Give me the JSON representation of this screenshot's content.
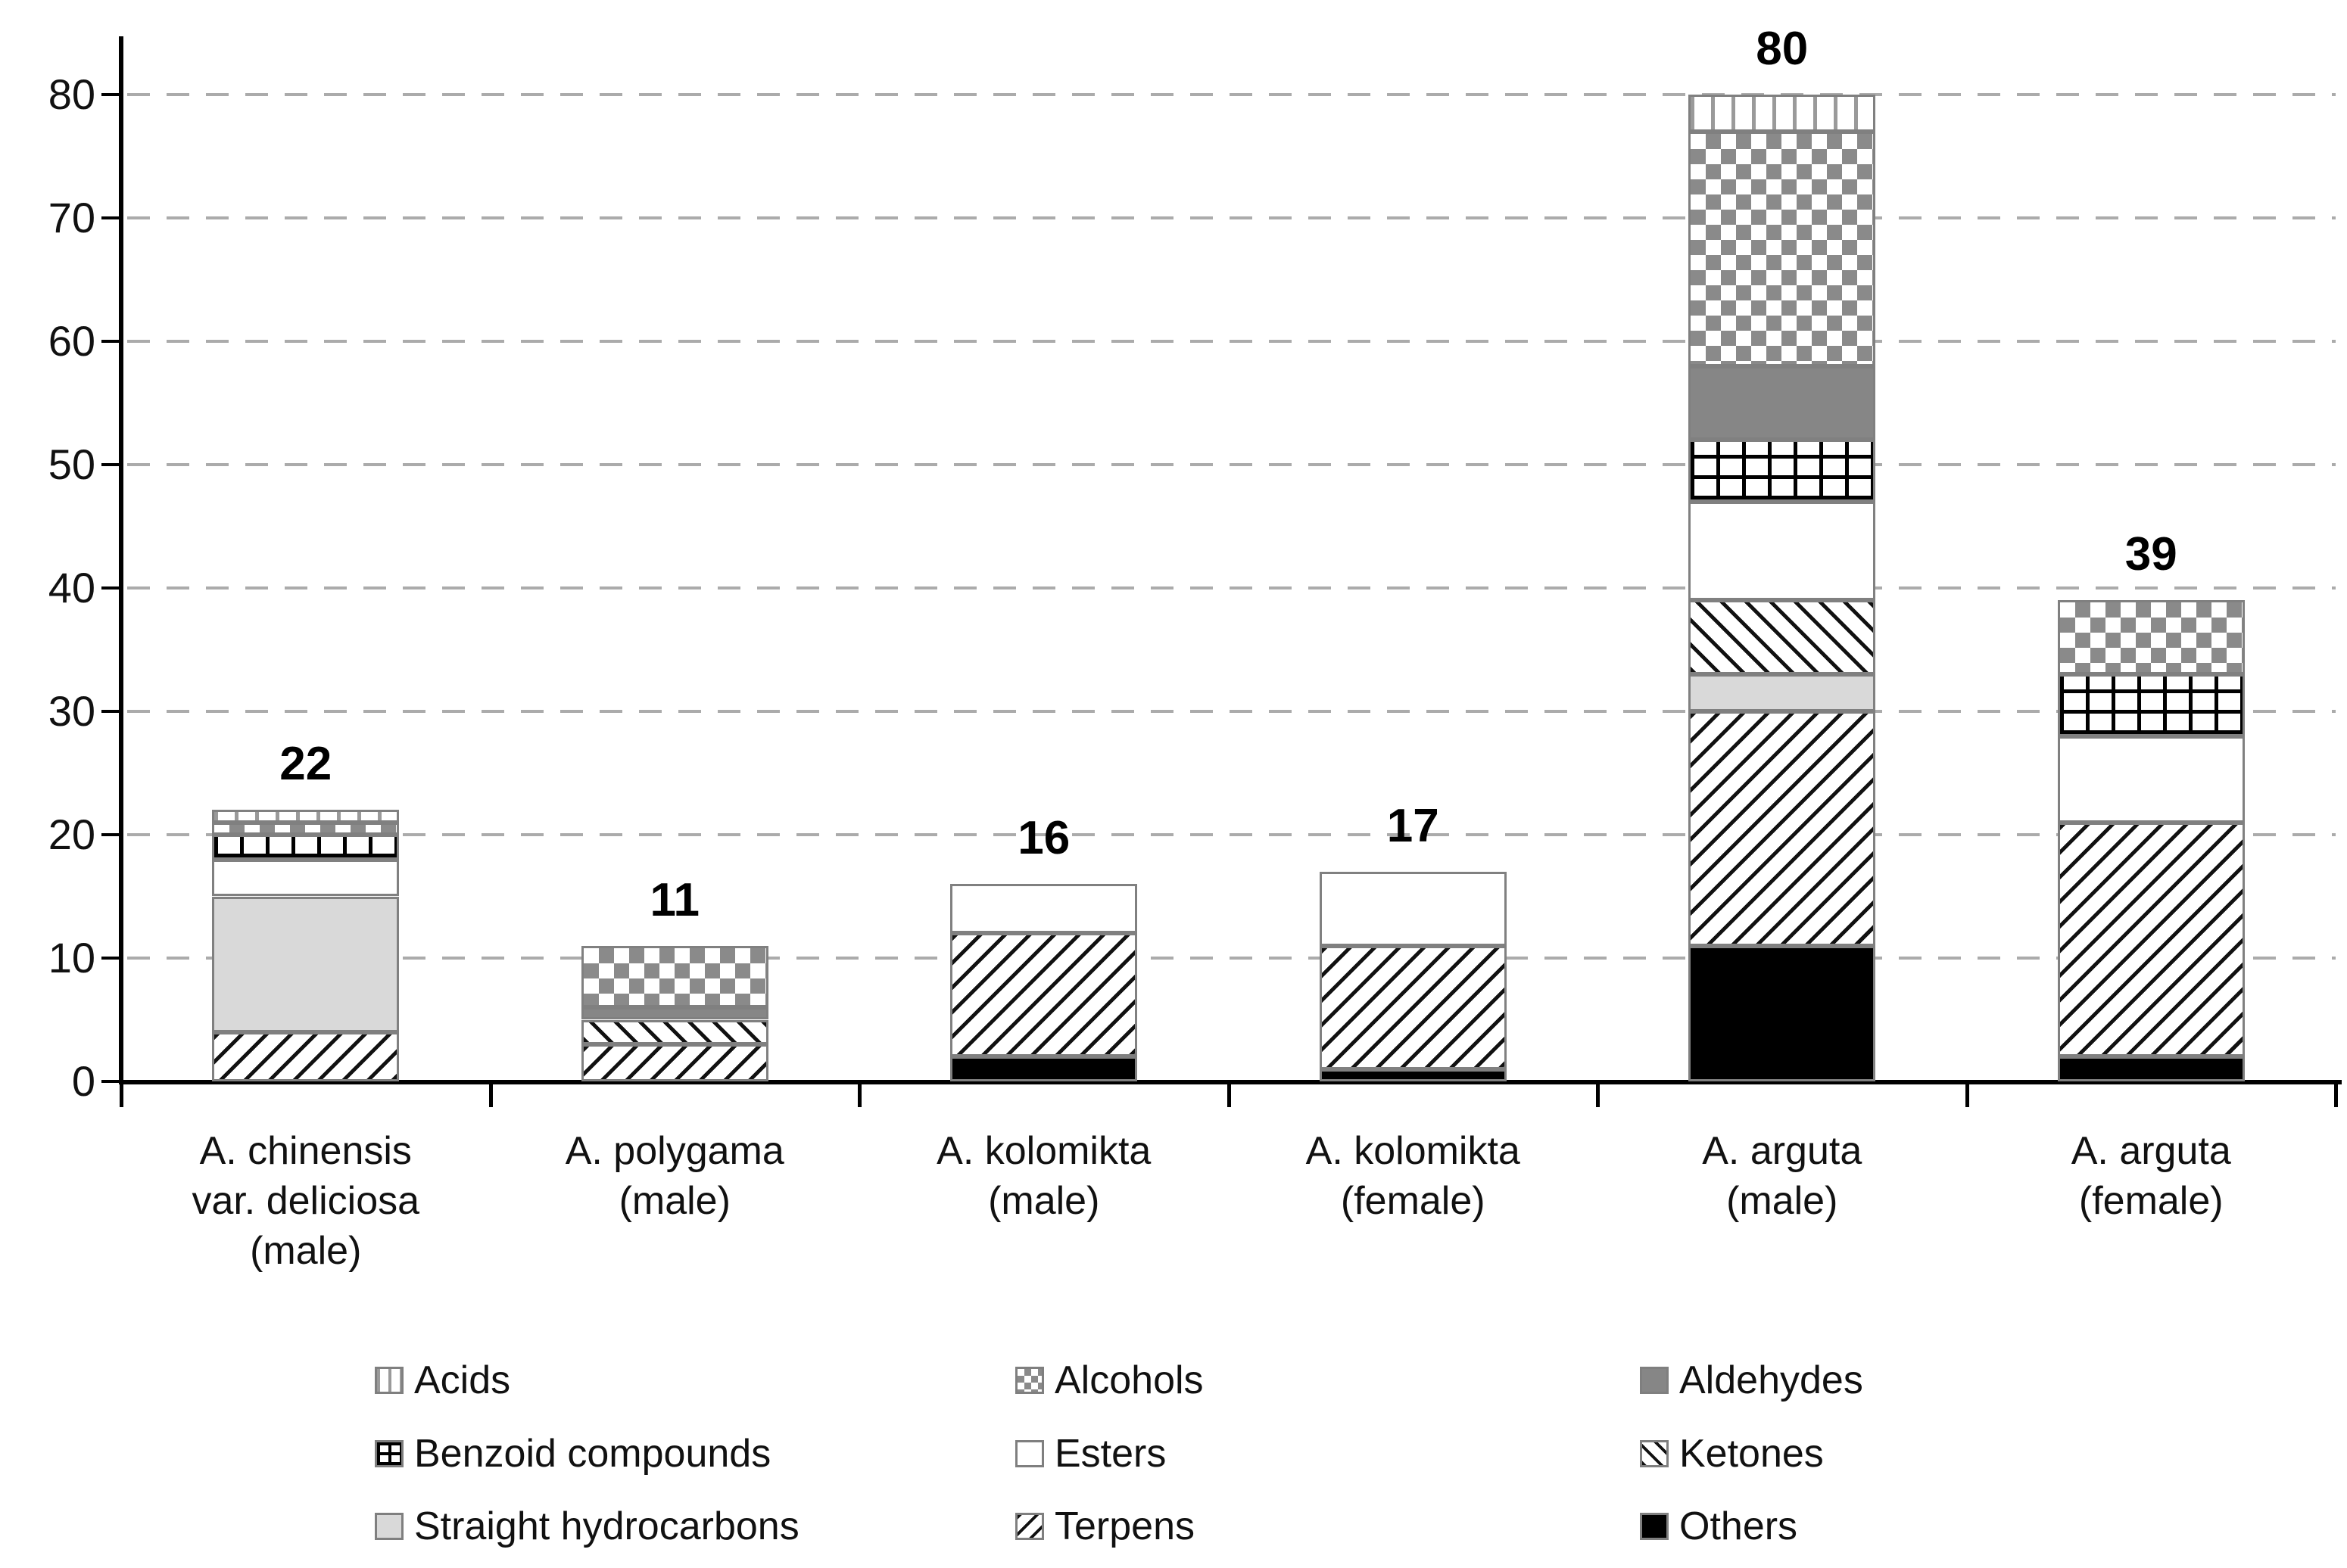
{
  "chart_data": {
    "type": "bar",
    "stacked": true,
    "title": "",
    "xlabel": "",
    "ylabel": "",
    "grid": "horizontal-dashed",
    "legend_position": "bottom",
    "categories": [
      "A. chinensis\nvar. deliciosa\n(male)",
      "A. polygama\n(male)",
      "A. kolomikta\n(male)",
      "A. kolomikta\n(female)",
      "A. arguta\n(male)",
      "A. arguta\n(female)"
    ],
    "totals": [
      22,
      11,
      16,
      17,
      80,
      39
    ],
    "series": [
      {
        "name": "Others",
        "pattern": "others",
        "values": [
          0,
          0,
          2,
          1,
          11,
          2
        ]
      },
      {
        "name": "Terpens",
        "pattern": "terpens",
        "values": [
          4,
          3,
          10,
          10,
          19,
          19
        ]
      },
      {
        "name": "Straight hydrocarbons",
        "pattern": "straight",
        "values": [
          11,
          0,
          0,
          0,
          3,
          0
        ]
      },
      {
        "name": "Ketones",
        "pattern": "ketones",
        "values": [
          0,
          2,
          0,
          0,
          6,
          0
        ]
      },
      {
        "name": "Esters",
        "pattern": "esters",
        "values": [
          3,
          0,
          4,
          6,
          8,
          7
        ]
      },
      {
        "name": "Benzoid compounds",
        "pattern": "benzoid",
        "values": [
          2,
          0,
          0,
          0,
          5,
          5
        ]
      },
      {
        "name": "Aldehydes",
        "pattern": "aldehydes",
        "values": [
          0,
          1,
          0,
          0,
          6,
          0
        ]
      },
      {
        "name": "Alcohols",
        "pattern": "alcohols",
        "values": [
          1,
          5,
          0,
          0,
          19,
          6
        ]
      },
      {
        "name": "Acids",
        "pattern": "acids",
        "values": [
          1,
          0,
          0,
          0,
          3,
          0
        ]
      }
    ],
    "y_axis": {
      "min": 0,
      "max": 80,
      "step": 10,
      "tick_labels": [
        "0",
        "10",
        "20",
        "30",
        "40",
        "50",
        "60",
        "70",
        "80"
      ]
    },
    "legend": {
      "items": [
        {
          "label": "Acids",
          "pattern": "acids"
        },
        {
          "label": "Alcohols",
          "pattern": "alcohols"
        },
        {
          "label": "Aldehydes",
          "pattern": "aldehydes"
        },
        {
          "label": "Benzoid compounds",
          "pattern": "benzoid"
        },
        {
          "label": "Esters",
          "pattern": "esters"
        },
        {
          "label": "Ketones",
          "pattern": "ketones"
        },
        {
          "label": "Straight hydrocarbons",
          "pattern": "straight"
        },
        {
          "label": "Terpens",
          "pattern": "terpens"
        },
        {
          "label": "Others",
          "pattern": "others"
        }
      ]
    },
    "colors": {
      "bar_border": "#808080",
      "grid_line": "#ababab",
      "axis": "#000000",
      "text": "#111111",
      "aldehydes_fill": "#868686",
      "checker_fill": "#8a8a8a",
      "straight_fill": "#d9d9d9",
      "others_fill": "#000000",
      "background": "#ffffff"
    }
  }
}
